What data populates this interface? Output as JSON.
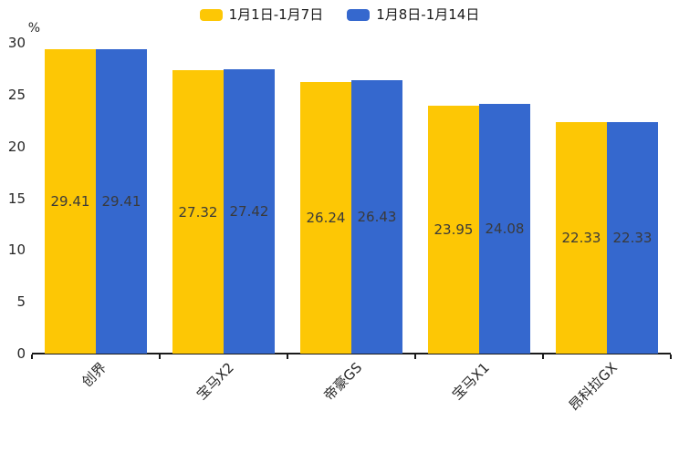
{
  "legend": {
    "series1_label": "1月1日-1月7日",
    "series2_label": "1月8日-1月14日"
  },
  "chart_data": {
    "type": "bar",
    "categories": [
      "创界",
      "宝马X2",
      "帝豪GS",
      "宝马X1",
      "昂科拉GX"
    ],
    "series": [
      {
        "name": "1月1日-1月7日",
        "color": "#FDC705",
        "values": [
          29.41,
          27.32,
          26.24,
          23.95,
          22.33
        ]
      },
      {
        "name": "1月8日-1月14日",
        "color": "#3568CE",
        "values": [
          29.41,
          27.42,
          26.43,
          24.08,
          22.33
        ]
      }
    ],
    "value_labels": [
      "29.41",
      "29.41",
      "27.32",
      "27.42",
      "26.24",
      "26.43",
      "23.95",
      "24.08",
      "22.33",
      "22.33"
    ],
    "xlabel": "",
    "ylabel": "%",
    "ylim": [
      0,
      30
    ],
    "yticks": [
      0,
      5,
      10,
      15,
      20,
      25,
      30
    ],
    "grid": false,
    "legend_position": "top-center",
    "bar_value_label_position": "centered-inside-bar",
    "x_tick_label_rotation_deg": 45
  }
}
